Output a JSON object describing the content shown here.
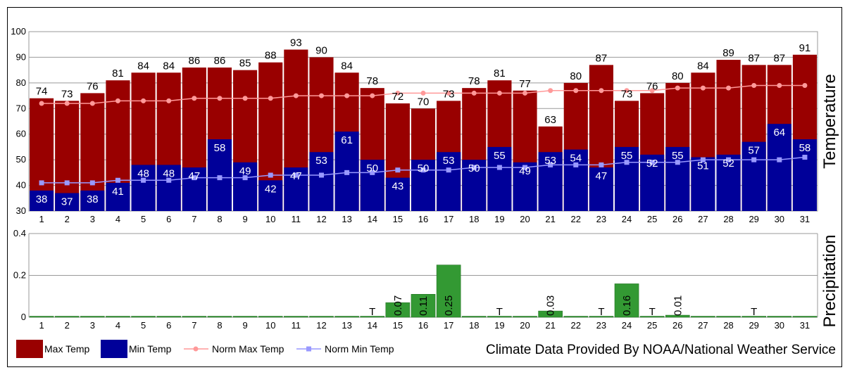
{
  "chart_data": [
    {
      "type": "bar",
      "ylabel": "Temperature",
      "ylim": [
        30,
        100
      ],
      "yticks": [
        30,
        40,
        50,
        60,
        70,
        80,
        90,
        100
      ],
      "categories": [
        "1",
        "2",
        "3",
        "4",
        "5",
        "6",
        "7",
        "8",
        "9",
        "10",
        "11",
        "12",
        "13",
        "14",
        "15",
        "16",
        "17",
        "18",
        "19",
        "20",
        "21",
        "22",
        "23",
        "24",
        "25",
        "26",
        "27",
        "28",
        "29",
        "30",
        "31"
      ],
      "series": [
        {
          "name": "Max Temp",
          "kind": "bar",
          "color": "#990000",
          "values": [
            74,
            73,
            76,
            81,
            84,
            84,
            86,
            86,
            85,
            88,
            93,
            90,
            84,
            78,
            72,
            70,
            73,
            78,
            81,
            77,
            63,
            80,
            87,
            73,
            76,
            80,
            84,
            89,
            87,
            87,
            91
          ]
        },
        {
          "name": "Min Temp",
          "kind": "bar",
          "color": "#000099",
          "values": [
            38,
            37,
            38,
            41,
            48,
            48,
            47,
            58,
            49,
            42,
            47,
            53,
            61,
            50,
            43,
            50,
            53,
            50,
            55,
            49,
            53,
            54,
            47,
            55,
            52,
            55,
            51,
            52,
            57,
            64,
            58
          ]
        },
        {
          "name": "Norm Max Temp",
          "kind": "line",
          "color": "#ff9999",
          "values": [
            72,
            72,
            72,
            73,
            73,
            73,
            74,
            74,
            74,
            74,
            75,
            75,
            75,
            75,
            76,
            76,
            76,
            76,
            76,
            76,
            77,
            77,
            77,
            77,
            77,
            78,
            78,
            78,
            79,
            79,
            79
          ]
        },
        {
          "name": "Norm Min Temp",
          "kind": "line",
          "color": "#9999ff",
          "values": [
            41,
            41,
            41,
            42,
            42,
            42,
            43,
            43,
            43,
            44,
            44,
            44,
            45,
            45,
            46,
            46,
            46,
            47,
            47,
            47,
            48,
            48,
            48,
            49,
            49,
            49,
            50,
            50,
            50,
            50,
            51
          ]
        }
      ]
    },
    {
      "type": "bar",
      "ylabel": "Precipitation",
      "ylim": [
        0,
        0.4
      ],
      "yticks": [
        "0",
        "0.2",
        "0.4"
      ],
      "categories": [
        "1",
        "2",
        "3",
        "4",
        "5",
        "6",
        "7",
        "8",
        "9",
        "10",
        "11",
        "12",
        "13",
        "14",
        "15",
        "16",
        "17",
        "18",
        "19",
        "20",
        "21",
        "22",
        "23",
        "24",
        "25",
        "26",
        "27",
        "28",
        "29",
        "30",
        "31"
      ],
      "series": [
        {
          "name": "Precipitation",
          "color": "#339933",
          "values": [
            0,
            0,
            0,
            0,
            0,
            0,
            0,
            0,
            0,
            0,
            0,
            0,
            0,
            0,
            0.07,
            0.11,
            0.25,
            0,
            0,
            0,
            0.03,
            0,
            0,
            0.16,
            0,
            0.01,
            0,
            0,
            0,
            0,
            0
          ],
          "labels": [
            "",
            "",
            "",
            "",
            "",
            "",
            "",
            "",
            "",
            "",
            "",
            "",
            "",
            "T",
            "0.07",
            "0.11",
            "0.25",
            "",
            "T",
            "",
            "0.03",
            "",
            "T",
            "0.16",
            "T",
            "0.01",
            "",
            "",
            "T",
            "",
            ""
          ]
        }
      ]
    }
  ],
  "legend": [
    {
      "label": "Max Temp",
      "type": "box",
      "color": "#990000"
    },
    {
      "label": "Min Temp",
      "type": "box",
      "color": "#000099"
    },
    {
      "label": "Norm Max Temp",
      "type": "line",
      "color": "#ff9999"
    },
    {
      "label": "Norm Min Temp",
      "type": "line",
      "color": "#9999ff"
    }
  ],
  "credit": "Climate Data Provided By NOAA/National Weather Service"
}
